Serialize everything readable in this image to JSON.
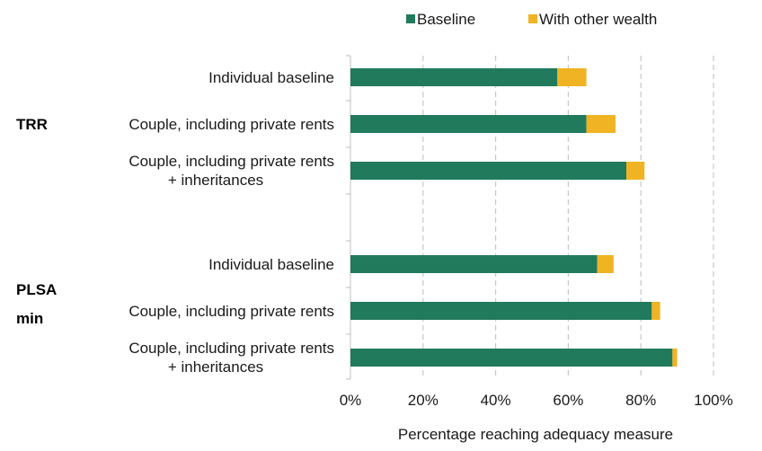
{
  "chart_data": {
    "type": "bar",
    "orientation": "horizontal",
    "stacked": true,
    "title": "",
    "xlabel": "Percentage reaching adequacy measure",
    "ylabel": "",
    "xlim": [
      0,
      100
    ],
    "x_ticks": [
      "0%",
      "20%",
      "40%",
      "60%",
      "80%",
      "100%"
    ],
    "legend": {
      "placement": "top",
      "entries": [
        "Baseline",
        "With other wealth"
      ]
    },
    "colors": {
      "Baseline": "#217a5c",
      "With other wealth": "#f0b323"
    },
    "groups": [
      {
        "label": [
          "TRR"
        ],
        "rows": [
          {
            "label": [
              "Individual baseline"
            ],
            "baseline": 57,
            "other_wealth": 8
          },
          {
            "label": [
              "Couple, including private rents"
            ],
            "baseline": 65,
            "other_wealth": 8
          },
          {
            "label": [
              "Couple, including private rents",
              "+ inheritances"
            ],
            "baseline": 76,
            "other_wealth": 5
          }
        ]
      },
      {
        "label": [
          "PLSA",
          "min"
        ],
        "rows": [
          {
            "label": [
              "Individual baseline"
            ],
            "baseline": 68,
            "other_wealth": 4.5
          },
          {
            "label": [
              "Couple, including private rents"
            ],
            "baseline": 83,
            "other_wealth": 2.3
          },
          {
            "label": [
              "Couple, including private rents",
              "+ inheritances"
            ],
            "baseline": 88.7,
            "other_wealth": 1.3
          }
        ]
      }
    ]
  }
}
